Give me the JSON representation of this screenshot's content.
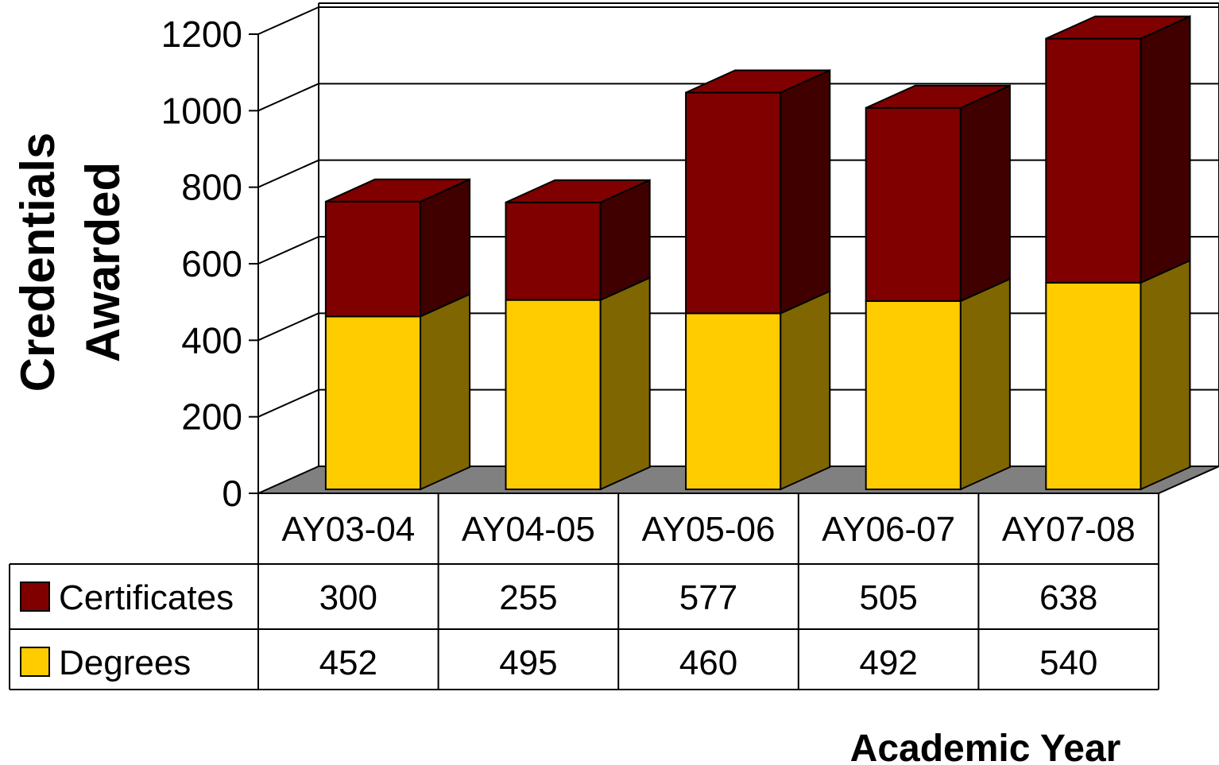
{
  "chart_data": {
    "type": "bar",
    "stacked": true,
    "three_d": true,
    "categories": [
      "AY03-04",
      "AY04-05",
      "AY05-06",
      "AY06-07",
      "AY07-08"
    ],
    "series": [
      {
        "name": "Degrees",
        "values": [
          452,
          495,
          460,
          492,
          540
        ],
        "color": "#FFCC00",
        "side_color": "#806600"
      },
      {
        "name": "Certificates",
        "values": [
          300,
          255,
          577,
          505,
          638
        ],
        "color": "#800000",
        "side_color": "#400000"
      }
    ],
    "table_order": [
      "Certificates",
      "Degrees"
    ],
    "ylabel_lines": [
      "Credentials",
      "Awarded"
    ],
    "xlabel": "Academic Year",
    "ylim": [
      0,
      1200
    ],
    "yticks": [
      0,
      200,
      400,
      600,
      800,
      1000,
      1200
    ],
    "grid": true,
    "floor_color": "#808080",
    "data_table": true
  }
}
